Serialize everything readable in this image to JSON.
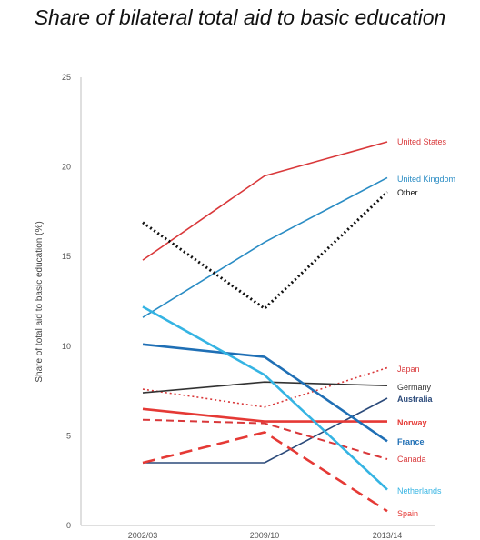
{
  "chart_data": {
    "type": "line",
    "title": "Share of bilateral total aid to basic education",
    "xlabel": "",
    "ylabel": "Share of total aid to basic education (%)",
    "categories": [
      "2002/03",
      "2009/10",
      "2013/14"
    ],
    "ylim": [
      0,
      25
    ],
    "yticks": [
      0,
      5,
      10,
      15,
      20,
      25
    ],
    "grid": false,
    "legend": "direct labels at line ends",
    "series": [
      {
        "name": "United States",
        "values": [
          14.8,
          19.5,
          21.4
        ],
        "color": "#d9383a",
        "dash": "solid",
        "width": 1.6,
        "bold": false
      },
      {
        "name": "United Kingdom",
        "values": [
          11.6,
          15.8,
          19.4
        ],
        "color": "#2a8cc4",
        "dash": "solid",
        "width": 1.6,
        "bold": false
      },
      {
        "name": "Other",
        "values": [
          16.9,
          12.1,
          18.6
        ],
        "color": "#111111",
        "dash": "dotted",
        "width": 3,
        "bold": false
      },
      {
        "name": "Japan",
        "values": [
          7.6,
          6.6,
          8.8
        ],
        "color": "#d9383a",
        "dash": "dotted",
        "width": 1.6,
        "bold": false
      },
      {
        "name": "Germany",
        "values": [
          7.4,
          8.0,
          7.8
        ],
        "color": "#333333",
        "dash": "solid",
        "width": 1.6,
        "bold": false
      },
      {
        "name": "Australia",
        "values": [
          3.5,
          3.5,
          7.1
        ],
        "color": "#2b4a7a",
        "dash": "solid",
        "width": 1.6,
        "bold": true
      },
      {
        "name": "Norway",
        "values": [
          6.5,
          5.8,
          5.8
        ],
        "color": "#e53935",
        "dash": "solid",
        "width": 2.6,
        "bold": true
      },
      {
        "name": "France",
        "values": [
          10.1,
          9.4,
          4.7
        ],
        "color": "#1f6fb5",
        "dash": "solid",
        "width": 2.6,
        "bold": true
      },
      {
        "name": "Canada",
        "values": [
          5.9,
          5.7,
          3.7
        ],
        "color": "#d9383a",
        "dash": "dashed",
        "width": 2,
        "bold": false
      },
      {
        "name": "Netherlands",
        "values": [
          12.2,
          8.4,
          2.0
        ],
        "color": "#35b4e3",
        "dash": "solid",
        "width": 2.6,
        "bold": false
      },
      {
        "name": "Spain",
        "values": [
          3.5,
          5.2,
          0.8
        ],
        "color": "#e53935",
        "dash": "longdash",
        "width": 2.6,
        "bold": false
      }
    ]
  }
}
